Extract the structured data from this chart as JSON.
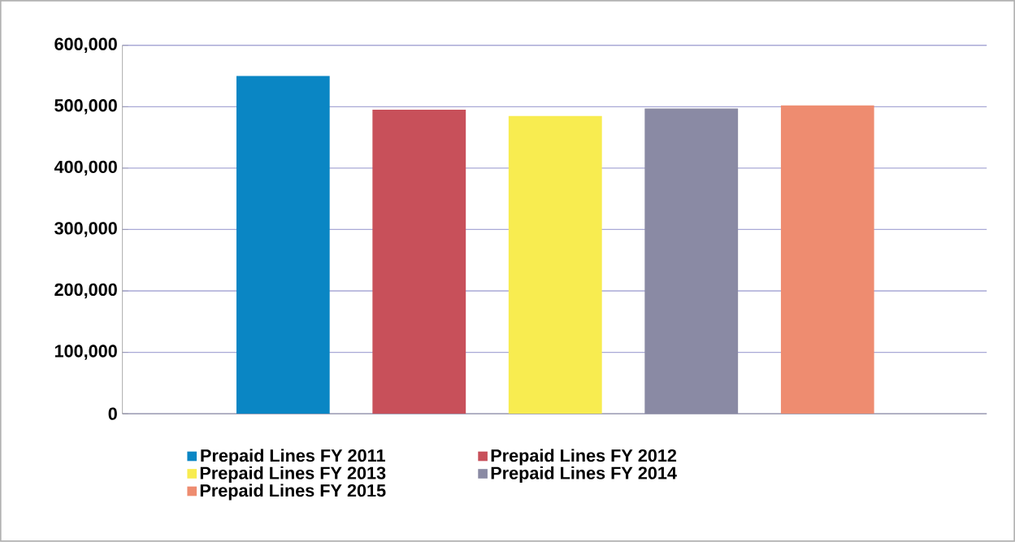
{
  "chart_data": {
    "type": "bar",
    "categories": [
      null,
      null,
      null,
      null,
      null
    ],
    "series": [
      {
        "name": "Prepaid Lines FY 2011",
        "color": "#0a86c4",
        "values": [
          550000,
          null,
          null,
          null,
          null
        ]
      },
      {
        "name": "Prepaid Lines FY 2012",
        "color": "#c8505a",
        "values": [
          null,
          495000,
          null,
          null,
          null
        ]
      },
      {
        "name": "Prepaid Lines FY 2013",
        "color": "#f8ec50",
        "values": [
          null,
          null,
          485000,
          null,
          null
        ]
      },
      {
        "name": "Prepaid Lines FY 2014",
        "color": "#8a8aa4",
        "values": [
          null,
          null,
          null,
          497000,
          null
        ]
      },
      {
        "name": "Prepaid Lines FY 2015",
        "color": "#ee8c70",
        "values": [
          null,
          null,
          null,
          null,
          502000
        ]
      }
    ],
    "ylim": [
      0,
      600000
    ],
    "yticks": [
      {
        "value": 0,
        "label": "0"
      },
      {
        "value": 100000,
        "label": "100,000"
      },
      {
        "value": 200000,
        "label": "200,000"
      },
      {
        "value": 300000,
        "label": "300,000"
      },
      {
        "value": 400000,
        "label": "400,000"
      },
      {
        "value": 500000,
        "label": "500,000"
      },
      {
        "value": 600000,
        "label": "600,000"
      }
    ],
    "grid": "y",
    "legend": "bottom"
  }
}
